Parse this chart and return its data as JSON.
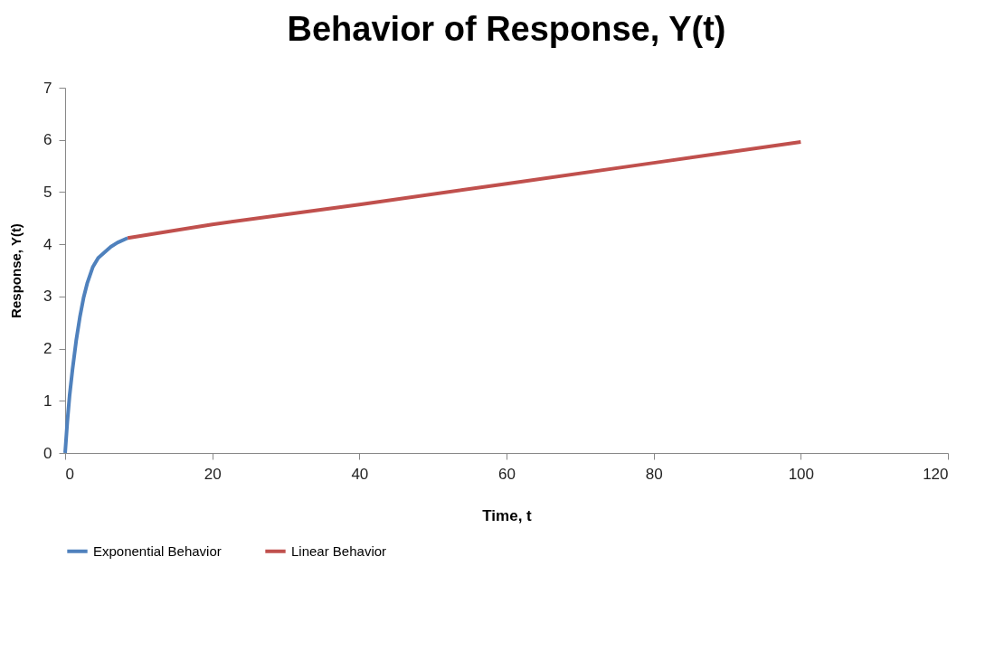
{
  "chart_data": {
    "type": "line",
    "title": "Behavior of Response, Y(t)",
    "xlabel": "Time, t",
    "ylabel": "Response, Y(t)",
    "xlim": [
      0,
      120
    ],
    "xticks": [
      0,
      20,
      40,
      60,
      80,
      100,
      120
    ],
    "ylim": [
      0,
      7
    ],
    "yticks": [
      0,
      1,
      2,
      3,
      4,
      5,
      6,
      7
    ],
    "grid": false,
    "legend": "bottom",
    "marker": "none",
    "line_style": "solid",
    "series": [
      {
        "name": "Exponential Behavior",
        "color": "#4f81bd",
        "x": [
          0,
          0.3,
          0.6,
          1,
          1.5,
          2,
          2.5,
          3,
          3.75,
          4.5,
          5.4,
          6.2,
          7.1,
          8.5
        ],
        "values": [
          0,
          0.6,
          1.09,
          1.6,
          2.15,
          2.6,
          2.97,
          3.25,
          3.56,
          3.74,
          3.85,
          3.95,
          4.03,
          4.12
        ]
      },
      {
        "name": "Linear Behavior",
        "color": "#c0504d",
        "x": [
          8.5,
          20,
          40,
          60,
          80,
          100
        ],
        "values": [
          4.12,
          4.38,
          4.76,
          5.16,
          5.56,
          5.96
        ]
      }
    ]
  }
}
